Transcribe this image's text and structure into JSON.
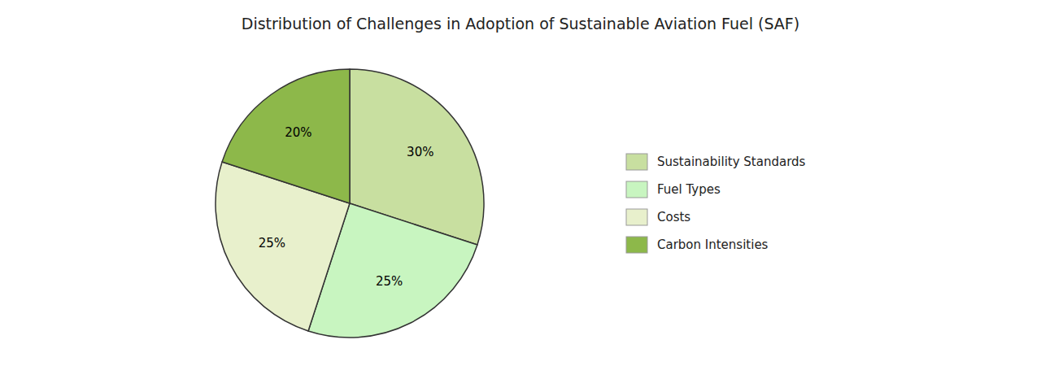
{
  "chart_data": {
    "type": "pie",
    "title": "Distribution of Challenges in Adoption of Sustainable Aviation Fuel (SAF)",
    "categories": [
      "Sustainability Standards",
      "Fuel Types",
      "Costs",
      "Carbon Intensities"
    ],
    "values": [
      30,
      25,
      25,
      20
    ],
    "value_labels": [
      "30%",
      "25%",
      "25%",
      "20%"
    ],
    "colors": [
      "#c8dfa0",
      "#c8f5c0",
      "#e8f0cc",
      "#8db84a"
    ],
    "data_labels": true,
    "legend": "right"
  }
}
